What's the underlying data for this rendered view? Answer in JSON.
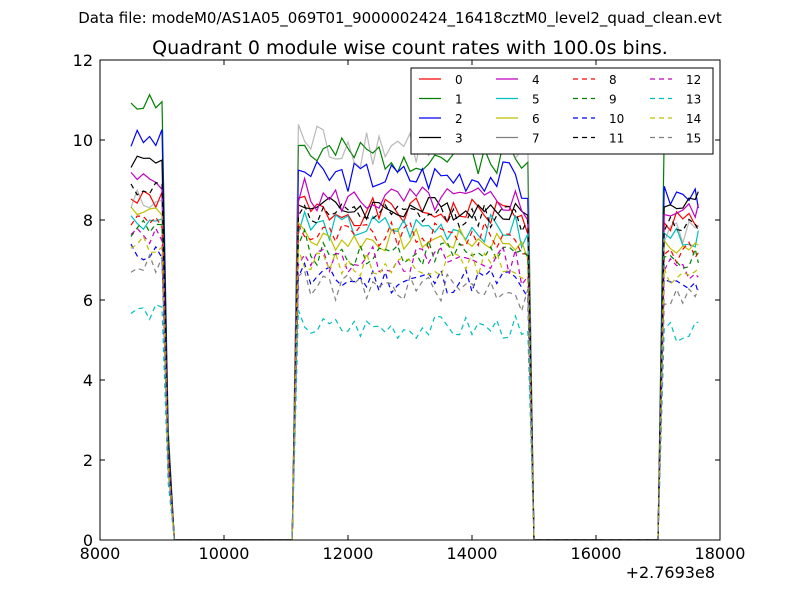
{
  "figure": {
    "suptitle": "Data file: modeM0/AS1A05_069T01_9000002424_16418cztM0_level2_quad_clean.evt",
    "x_offset_label": "+2.7693e8"
  },
  "chart_data": {
    "type": "line",
    "title": "Quadrant 0 module wise count rates with 100.0s bins.",
    "xlabel": "",
    "ylabel": "",
    "xlim": [
      8000,
      18000
    ],
    "ylim": [
      0,
      12
    ],
    "x_ticks": [
      8000,
      10000,
      12000,
      14000,
      16000,
      18000
    ],
    "y_ticks": [
      0,
      2,
      4,
      6,
      8,
      10,
      12
    ],
    "x_tick_labels": [
      "8000",
      "10000",
      "12000",
      "14000",
      "16000",
      "18000"
    ],
    "y_tick_labels": [
      "0",
      "2",
      "4",
      "6",
      "8",
      "10",
      "12"
    ],
    "grid": false,
    "legend_position": "top-right",
    "legend_columns": 4,
    "x": {
      "seg1": [
        8500,
        8600,
        8700,
        8800,
        8900,
        9000,
        9100,
        9200
      ],
      "zero": [
        9200,
        9300,
        11100
      ],
      "seg2": [
        11100,
        11200,
        11300,
        11400,
        11500,
        11600,
        11700,
        11800,
        11900,
        12000,
        12100,
        12200,
        12300,
        12400,
        12500,
        12600,
        12700,
        12800,
        12900,
        13000,
        13100,
        13200,
        13300,
        13400,
        13500,
        13600,
        13700,
        13800,
        13900,
        14000,
        14100,
        14200,
        14300,
        14400,
        14500,
        14600,
        14700,
        14800,
        14900,
        15000
      ],
      "zero2": [
        15000,
        15100,
        17000
      ],
      "seg3": [
        17000,
        17100,
        17200,
        17300,
        17400,
        17500,
        17600,
        17650
      ]
    },
    "series": [
      {
        "name": "0",
        "color": "#ff0000",
        "dash": "solid",
        "level": 8.2,
        "start": 8.5,
        "end": 8.0,
        "amp": 0.35,
        "seed": 1
      },
      {
        "name": "1",
        "color": "#008000",
        "dash": "solid",
        "level": 9.6,
        "start": 11.0,
        "end": 10.0,
        "amp": 0.45,
        "seed": 2
      },
      {
        "name": "2",
        "color": "#0000ff",
        "dash": "solid",
        "level": 9.1,
        "start": 10.0,
        "end": 8.6,
        "amp": 0.4,
        "seed": 3
      },
      {
        "name": "3",
        "color": "#000000",
        "dash": "solid",
        "level": 8.3,
        "start": 9.5,
        "end": 8.5,
        "amp": 0.3,
        "seed": 4
      },
      {
        "name": "4",
        "color": "#bf00bf",
        "dash": "solid",
        "level": 8.5,
        "start": 9.0,
        "end": 8.2,
        "amp": 0.35,
        "seed": 5
      },
      {
        "name": "5",
        "color": "#00bfbf",
        "dash": "solid",
        "level": 7.8,
        "start": 8.0,
        "end": 7.6,
        "amp": 0.35,
        "seed": 6
      },
      {
        "name": "6",
        "color": "#bfbf00",
        "dash": "solid",
        "level": 7.5,
        "start": 8.3,
        "end": 7.3,
        "amp": 0.3,
        "seed": 7
      },
      {
        "name": "7",
        "color": "#808080",
        "dash": "solid",
        "level": 9.9,
        "start": 8.4,
        "end": 7.8,
        "amp": 0.6,
        "seed": 8
      },
      {
        "name": "8",
        "color": "#ff0000",
        "dash": "dashed",
        "level": 7.6,
        "start": 8.0,
        "end": 7.2,
        "amp": 0.35,
        "seed": 9
      },
      {
        "name": "9",
        "color": "#008000",
        "dash": "dashed",
        "level": 7.2,
        "start": 7.8,
        "end": 7.0,
        "amp": 0.35,
        "seed": 10
      },
      {
        "name": "10",
        "color": "#0000ff",
        "dash": "dashed",
        "level": 6.5,
        "start": 7.2,
        "end": 6.3,
        "amp": 0.35,
        "seed": 11
      },
      {
        "name": "11",
        "color": "#000000",
        "dash": "dashed",
        "level": 8.1,
        "start": 8.8,
        "end": 7.9,
        "amp": 0.3,
        "seed": 12
      },
      {
        "name": "12",
        "color": "#bf00bf",
        "dash": "dashed",
        "level": 7.0,
        "start": 7.6,
        "end": 6.8,
        "amp": 0.35,
        "seed": 13
      },
      {
        "name": "13",
        "color": "#00bfbf",
        "dash": "dashed",
        "level": 5.3,
        "start": 5.7,
        "end": 5.2,
        "amp": 0.3,
        "seed": 14
      },
      {
        "name": "14",
        "color": "#bfbf00",
        "dash": "dashed",
        "level": 6.9,
        "start": 7.4,
        "end": 6.6,
        "amp": 0.3,
        "seed": 15
      },
      {
        "name": "15",
        "color": "#808080",
        "dash": "dashed",
        "level": 6.3,
        "start": 6.9,
        "end": 6.1,
        "amp": 0.35,
        "seed": 16
      }
    ]
  }
}
